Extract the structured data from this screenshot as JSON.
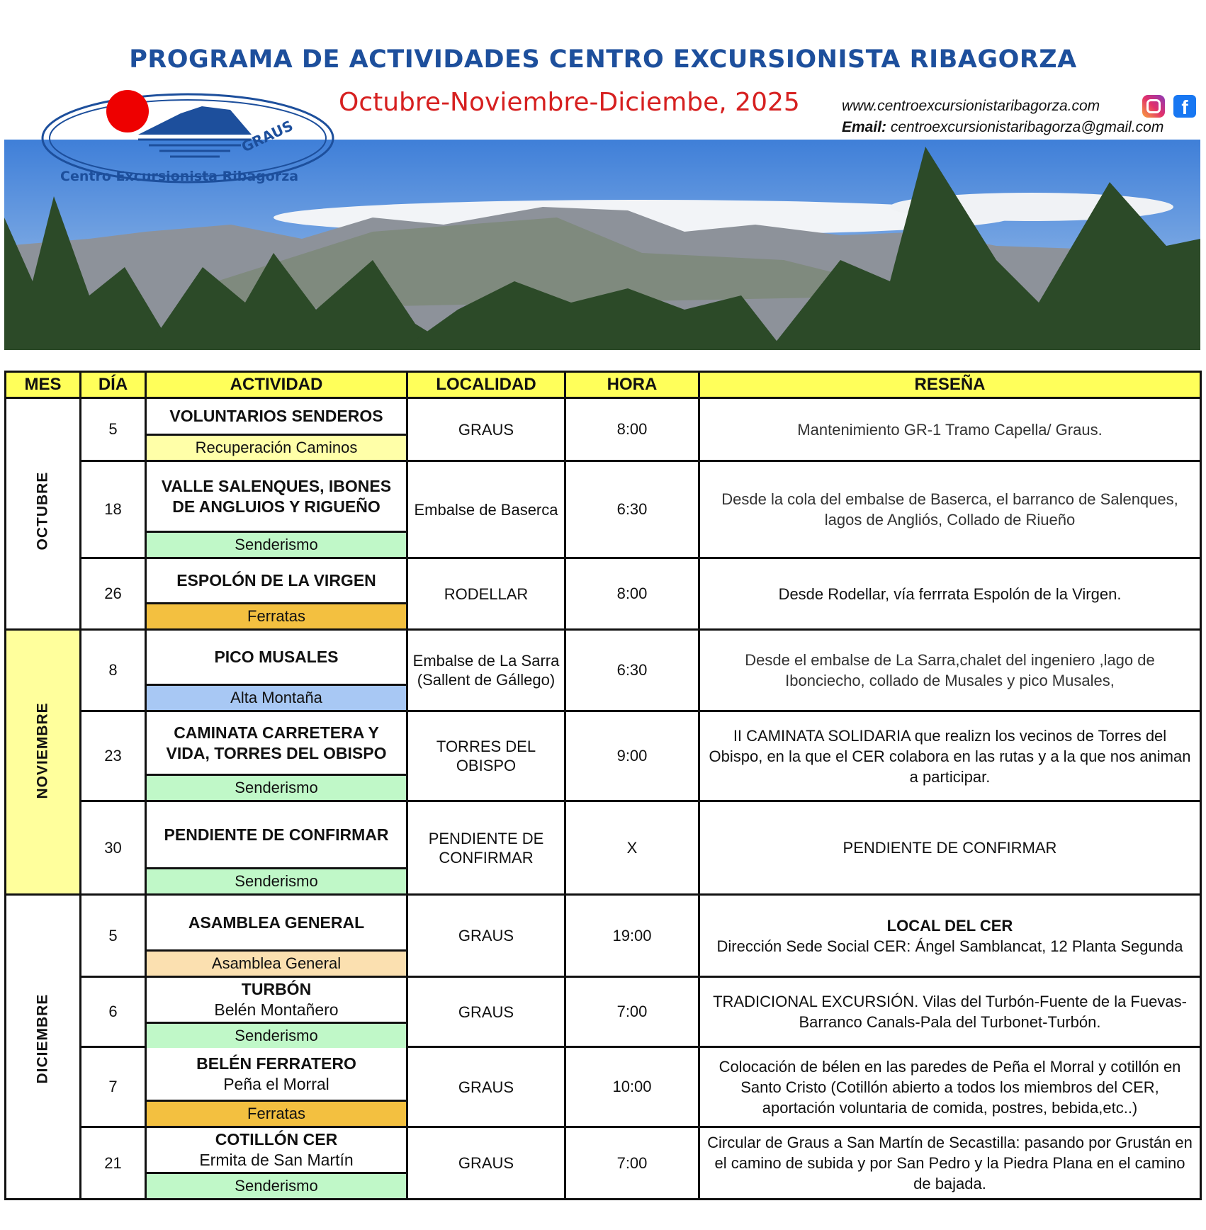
{
  "header": {
    "title": "PROGRAMA DE ACTIVIDADES CENTRO EXCURSIONISTA RIBAGORZA",
    "subtitle": "Octubre-Noviembre-Diciembe, 2025",
    "website": "www.centroexcursionistaribagorza.com",
    "email_label": "Email:",
    "email": "centroexcursionistaribagorza@gmail.com",
    "social_icons": [
      "instagram-icon",
      "facebook-icon"
    ],
    "logo_text": [
      "GRAUS",
      "Centro Excursionista Ribagorza"
    ]
  },
  "table": {
    "columns": [
      "MES",
      "DÍA",
      "ACTIVIDAD",
      "LOCALIDAD",
      "HORA",
      "RESEÑA"
    ],
    "months": [
      {
        "name": "OCTUBRE",
        "rows": 3,
        "color": "#ffffff"
      },
      {
        "name": "NOVIEMBRE",
        "rows": 3,
        "color": "#ffff9c"
      },
      {
        "name": "DICIEMBRE",
        "rows": 4,
        "color": "#ffffff"
      }
    ],
    "rows": [
      {
        "day": "5",
        "title": "VOLUNTARIOS SENDEROS",
        "sub": "",
        "category": "Recuperación Caminos",
        "cat_color": "#ffffa8",
        "place": "GRAUS",
        "time": "8:00",
        "review": "Mantenimiento GR-1 Tramo Capella/ Graus.",
        "review_bold": ""
      },
      {
        "day": "18",
        "title": "VALLE SALENQUES, IBONES DE ANGLUIOS Y RIGUEÑO",
        "sub": "",
        "category": "Senderismo",
        "cat_color": "#c0f8c8",
        "place": "Embalse de Baserca",
        "time": "6:30",
        "review": "Desde la cola del embalse de Baserca, el barranco de Salenques, lagos de Angliós,  Collado de Riueño",
        "review_bold": ""
      },
      {
        "day": "26",
        "title": "ESPOLÓN DE LA VIRGEN",
        "sub": "",
        "category": "Ferratas",
        "cat_color": "#f3c040",
        "place": "RODELLAR",
        "time": "8:00",
        "review": "Desde Rodellar, vía ferrrata Espolón de la Virgen.",
        "review_bold": ""
      },
      {
        "day": "8",
        "title": "PICO MUSALES",
        "sub": "",
        "category": "Alta Montaña",
        "cat_color": "#a8c8f4",
        "place": "Embalse de La Sarra (Sallent de Gállego)",
        "time": "6:30",
        "review": "Desde el embalse de La Sarra,chalet del ingeniero ,lago de Ibonciecho, collado de Musales y pico Musales,",
        "review_bold": ""
      },
      {
        "day": "23",
        "title": "CAMINATA CARRETERA Y VIDA, TORRES DEL OBISPO",
        "sub": "",
        "category": "Senderismo",
        "cat_color": "#c0f8c8",
        "place": "TORRES DEL OBISPO",
        "time": "9:00",
        "review": "II CAMINATA SOLIDARIA que  realizn los vecinos de Torres del Obispo, en la que el CER colabora en las rutas  y a la que nos animan a participar.",
        "review_bold": ""
      },
      {
        "day": "30",
        "title": "PENDIENTE DE CONFIRMAR",
        "sub": "",
        "category": "Senderismo",
        "cat_color": "#c0f8c8",
        "place": "PENDIENTE DE CONFIRMAR",
        "time": "X",
        "review": "PENDIENTE DE CONFIRMAR",
        "review_bold": ""
      },
      {
        "day": "5",
        "title": "ASAMBLEA GENERAL",
        "sub": "",
        "category": "Asamblea General",
        "cat_color": "#fbe0b0",
        "place": "GRAUS",
        "time": "19:00",
        "review": "Dirección Sede Social CER: Ángel Samblancat, 12 Planta Segunda",
        "review_bold": "LOCAL DEL CER"
      },
      {
        "day": "6",
        "title": "TURBÓN",
        "sub": "Belén Montañero",
        "category": "Senderismo",
        "cat_color": "#c0f8c8",
        "place": "GRAUS",
        "time": "7:00",
        "review": "TRADICIONAL EXCURSIÓN. Vilas del Turbón-Fuente de la Fuevas-Barranco Canals-Pala del Turbonet-Turbón.",
        "review_bold": ""
      },
      {
        "day": "7",
        "title": "BELÉN FERRATERO",
        "sub": "Peña el Morral",
        "category": "Ferratas",
        "cat_color": "#f3c040",
        "place": "GRAUS",
        "time": "10:00",
        "review": "Colocación de bélen en las paredes de Peña el Morral y cotillón en Santo Cristo (Cotillón abierto a todos los miembros del CER, aportación voluntaria de comida, postres, bebida,etc..)",
        "review_bold": ""
      },
      {
        "day": "21",
        "title": "COTILLÓN CER",
        "sub": "Ermita de  San Martín",
        "category": "Senderismo",
        "cat_color": "#c0f8c8",
        "place": "GRAUS",
        "time": "7:00",
        "review": "Circular de Graus a San Martín de Secastilla: pasando por Grustán en el camino de subida y por San Pedro y la Piedra Plana en el camino de bajada.",
        "review_bold": ""
      }
    ]
  }
}
